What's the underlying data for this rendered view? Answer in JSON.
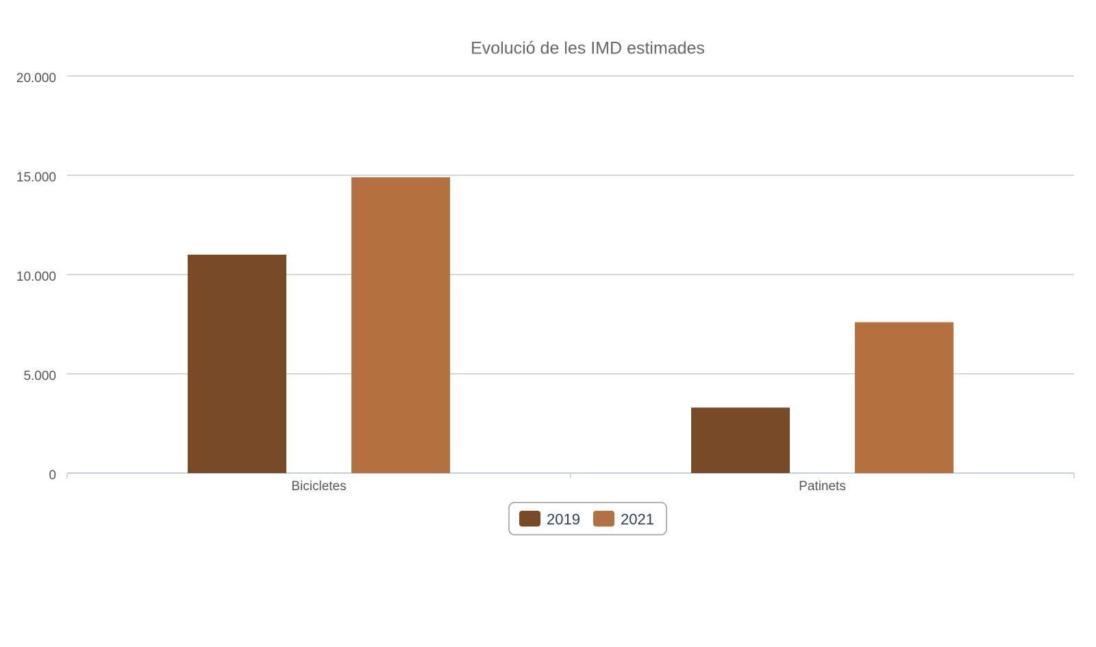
{
  "chart_data": {
    "type": "bar",
    "title": "Evolució de les IMD estimades",
    "categories": [
      "Bicicletes",
      "Patinets"
    ],
    "series": [
      {
        "name": "2019",
        "color": "#784a28",
        "values": [
          11000,
          3300
        ]
      },
      {
        "name": "2021",
        "color": "#b4703f",
        "values": [
          14900,
          7600
        ]
      }
    ],
    "ylim": [
      0,
      20000
    ],
    "yticks": [
      0,
      {
        "value": 5000,
        "label": "5.000"
      },
      {
        "value": 10000,
        "label": "10.000"
      },
      {
        "value": 15000,
        "label": "15.000"
      },
      {
        "value": 20000,
        "label": "20.000"
      }
    ],
    "grid": true,
    "legend": "bottom"
  }
}
